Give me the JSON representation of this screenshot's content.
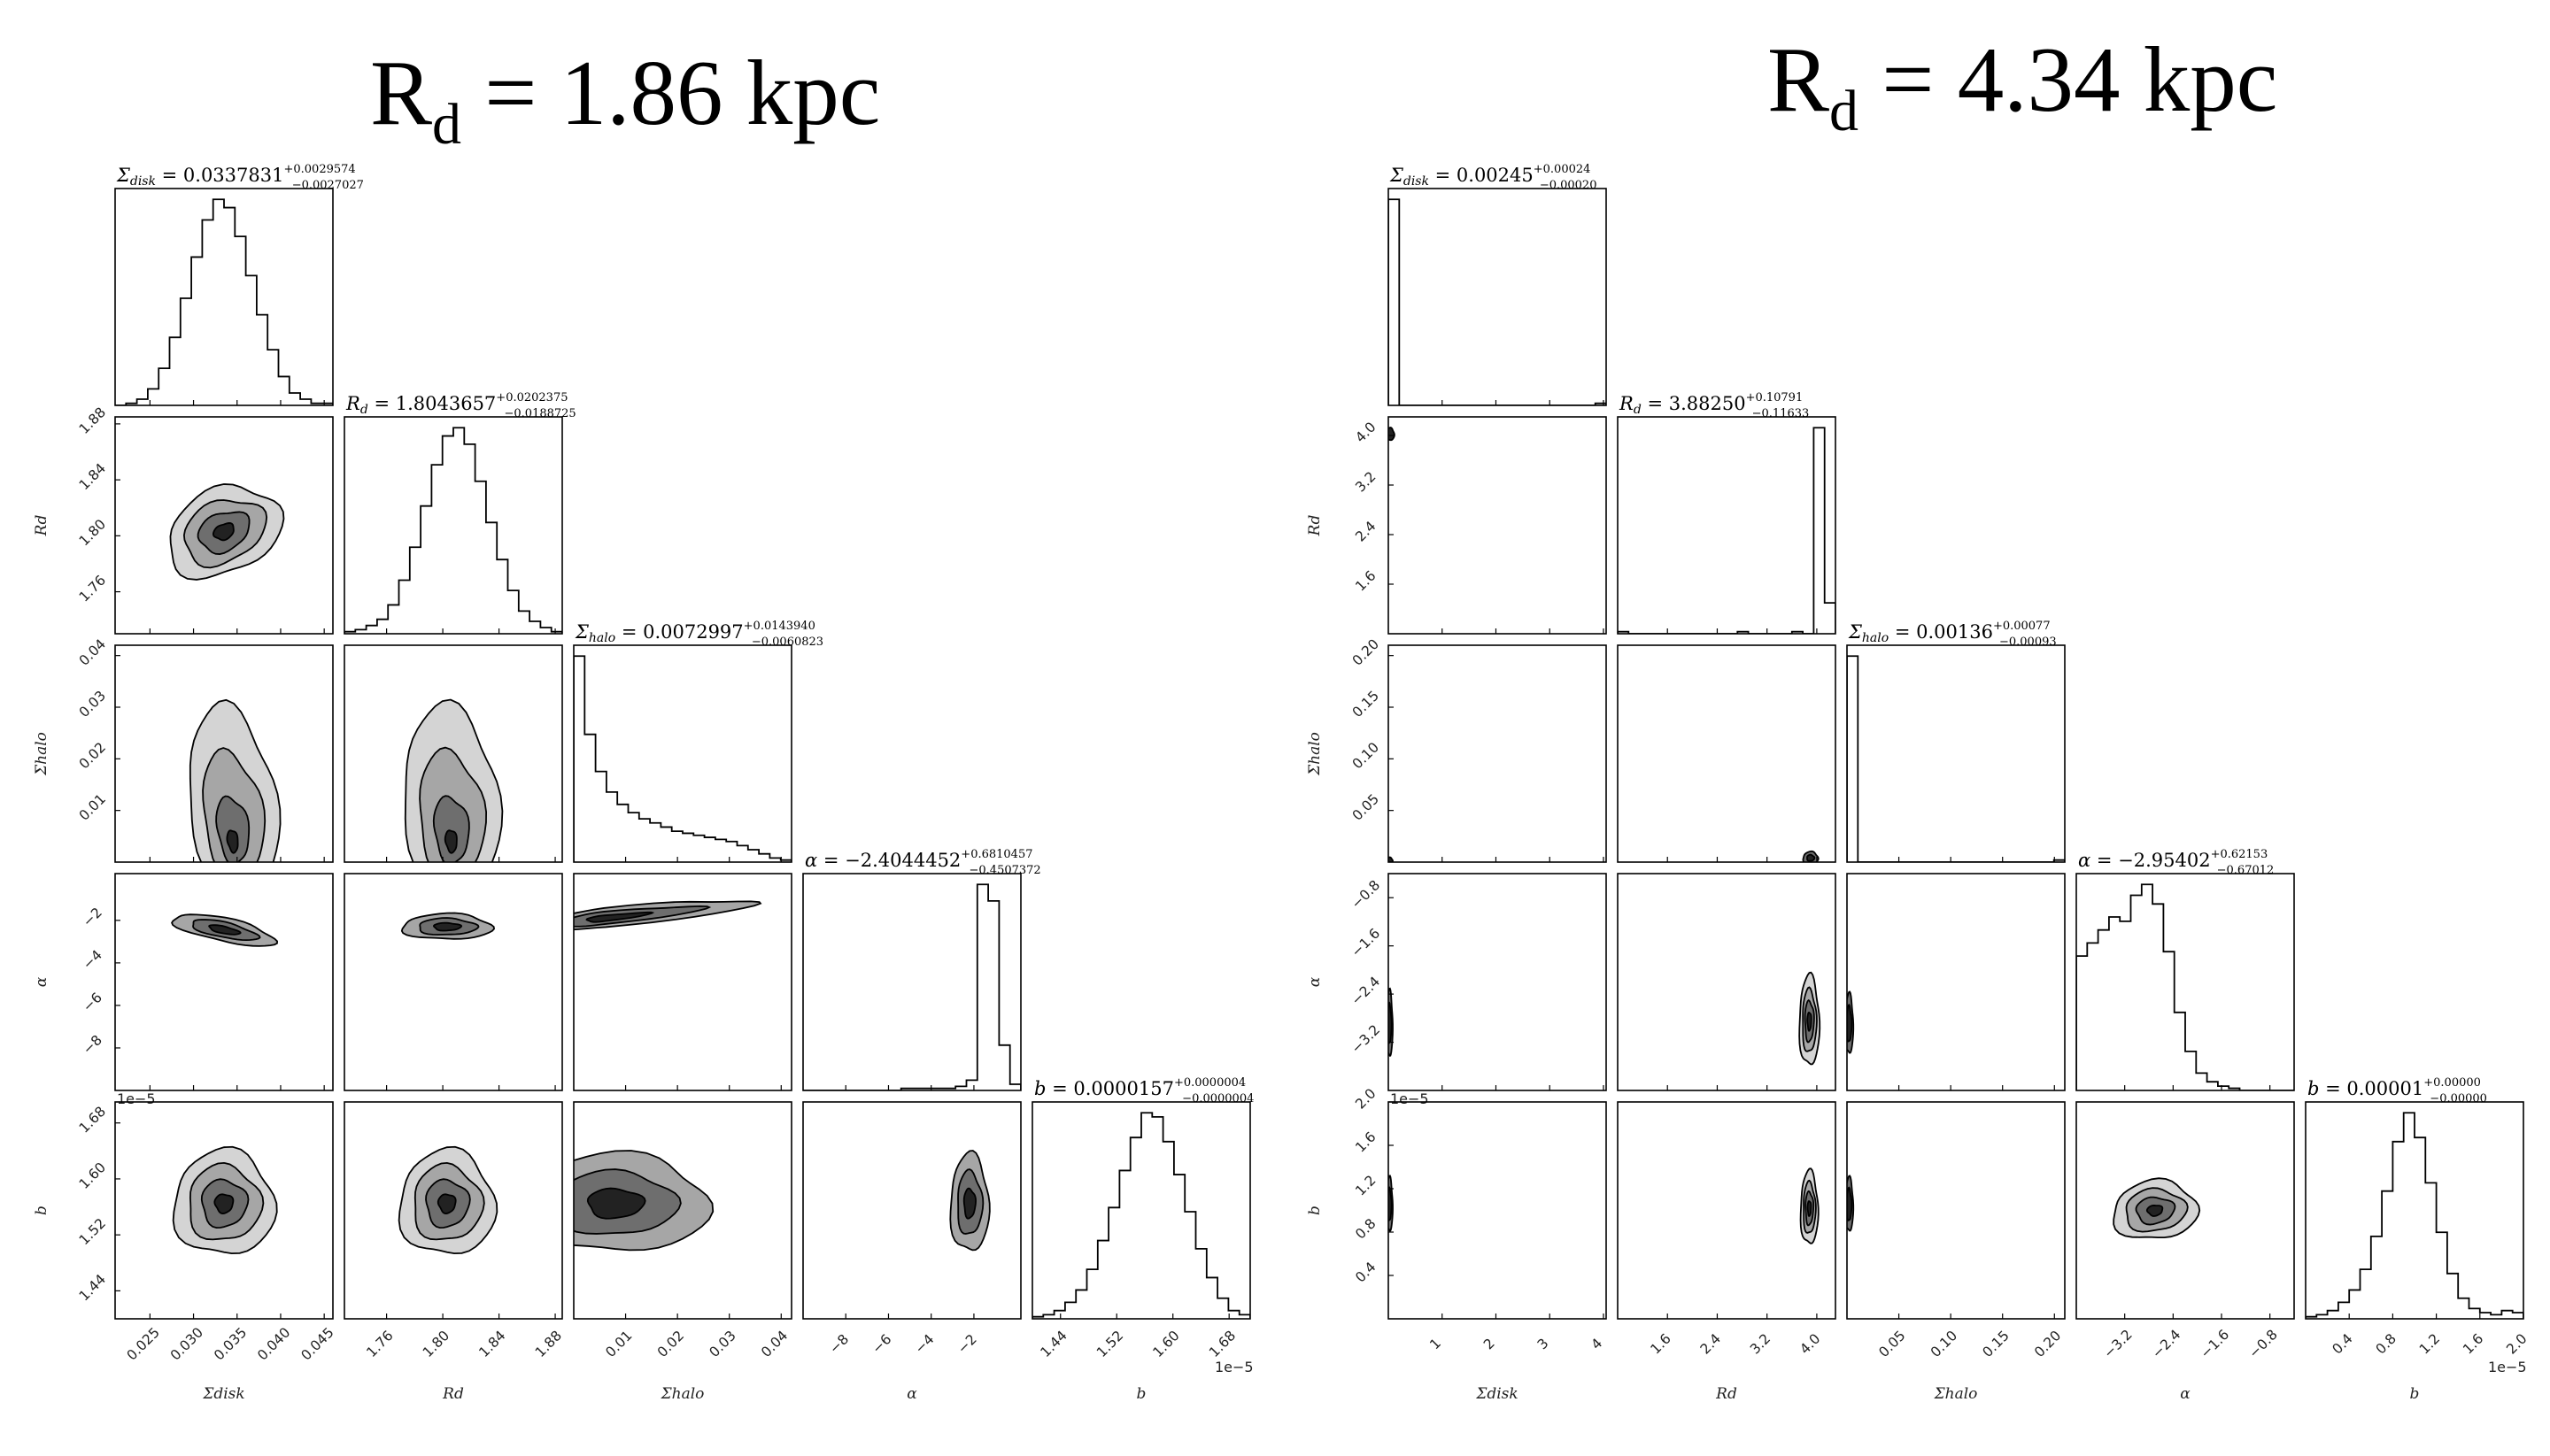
{
  "figures": [
    {
      "title_main": "R",
      "title_sub": "d",
      "title_rest": " = 1.86 kpc"
    },
    {
      "title_main": "R",
      "title_sub": "d",
      "title_rest": " = 4.34 kpc"
    }
  ],
  "chart_data": [
    {
      "type": "corner",
      "parameters": [
        "Σ_disk",
        "R_d",
        "Σ_halo",
        "α",
        "b"
      ],
      "axis_labels": [
        "Σdisk",
        "Rd",
        "Σhalo",
        "α",
        "b"
      ],
      "panel_titles": [
        {
          "name": "Σ",
          "sub": "disk",
          "value": " = 0.0337831",
          "plus": "+0.0029574",
          "minus": "−0.0027027"
        },
        {
          "name": "R",
          "sub": "d",
          "value": " = 1.8043657",
          "plus": "+0.0202375",
          "minus": "−0.0188725"
        },
        {
          "name": "Σ",
          "sub": "halo",
          "value": " = 0.0072997",
          "plus": "+0.0143940",
          "minus": "−0.0060823"
        },
        {
          "name": "α",
          "sub": "",
          "value": " = −2.4044452",
          "plus": "+0.6810457",
          "minus": "−0.4507372"
        },
        {
          "name": "b",
          "sub": "",
          "value": " = 0.0000157",
          "plus": "+0.0000004",
          "minus": "−0.0000004"
        }
      ],
      "estimates": [
        0.0337831,
        1.8043657,
        0.0072997,
        -2.4044452,
        1.57
      ],
      "ranges": [
        [
          0.021,
          0.046
        ],
        [
          1.73,
          1.885
        ],
        [
          0,
          0.042
        ],
        [
          -10,
          0.2
        ],
        [
          1.4,
          1.71
        ]
      ],
      "ticks": [
        {
          "values": [
            0.025,
            0.03,
            0.035,
            0.04,
            0.045
          ],
          "labels": [
            "0.025",
            "0.030",
            "0.035",
            "0.040",
            "0.045"
          ]
        },
        {
          "values": [
            1.76,
            1.8,
            1.84,
            1.88
          ],
          "labels": [
            "1.76",
            "1.80",
            "1.84",
            "1.88"
          ]
        },
        {
          "values": [
            0.01,
            0.02,
            0.03,
            0.04
          ],
          "labels": [
            "0.01",
            "0.02",
            "0.03",
            "0.04"
          ]
        },
        {
          "values": [
            -8,
            -6,
            -4,
            -2
          ],
          "labels": [
            "−8",
            "−6",
            "−4",
            "−2"
          ]
        },
        {
          "values": [
            1.44,
            1.52,
            1.6,
            1.68
          ],
          "labels": [
            "1.44",
            "1.52",
            "1.60",
            "1.68"
          ]
        }
      ],
      "offset_text_x": "1e−5",
      "offset_text_y": "1e−5",
      "histograms": [
        [
          0,
          1,
          3,
          8,
          18,
          33,
          52,
          72,
          90,
          100,
          96,
          82,
          63,
          44,
          27,
          14,
          6,
          3,
          1,
          1
        ],
        [
          1,
          2,
          4,
          7,
          14,
          26,
          42,
          62,
          82,
          96,
          100,
          92,
          74,
          54,
          36,
          21,
          11,
          6,
          3,
          1
        ],
        [
          100,
          62,
          44,
          34,
          28,
          24,
          21,
          19,
          17,
          15,
          14,
          13,
          12,
          11,
          10,
          8,
          6,
          4,
          2,
          1
        ],
        [
          0,
          0,
          0,
          0,
          0,
          0,
          0,
          0,
          0,
          1,
          1,
          1,
          1,
          1,
          2,
          5,
          100,
          92,
          22,
          3
        ],
        [
          1,
          2,
          4,
          8,
          14,
          24,
          38,
          54,
          72,
          88,
          100,
          98,
          86,
          70,
          52,
          34,
          20,
          10,
          4,
          2
        ]
      ]
    },
    {
      "type": "corner",
      "parameters": [
        "Σ_disk",
        "R_d",
        "Σ_halo",
        "α",
        "b"
      ],
      "axis_labels": [
        "Σdisk",
        "Rd",
        "Σhalo",
        "α",
        "b"
      ],
      "panel_titles": [
        {
          "name": "Σ",
          "sub": "disk",
          "value": " = 0.00245",
          "plus": "+0.00024",
          "minus": "−0.00020"
        },
        {
          "name": "R",
          "sub": "d",
          "value": " = 3.88250",
          "plus": "+0.10791",
          "minus": "−0.11633"
        },
        {
          "name": "Σ",
          "sub": "halo",
          "value": " = 0.00136",
          "plus": "+0.00077",
          "minus": "−0.00093"
        },
        {
          "name": "α",
          "sub": "",
          "value": " = −2.95402",
          "plus": "+0.62153",
          "minus": "−0.67012"
        },
        {
          "name": "b",
          "sub": "",
          "value": " = 0.00001",
          "plus": "+0.00000",
          "minus": "−0.00000"
        }
      ],
      "estimates": [
        0.00245,
        3.8825,
        0.00136,
        -2.95402,
        1.0
      ],
      "ranges": [
        [
          0,
          4.05
        ],
        [
          0.8,
          4.3
        ],
        [
          0,
          0.21
        ],
        [
          -4.0,
          -0.4
        ],
        [
          0,
          2.0
        ]
      ],
      "ticks": [
        {
          "values": [
            1,
            2,
            3,
            4
          ],
          "labels": [
            "1",
            "2",
            "3",
            "4"
          ]
        },
        {
          "values": [
            1.6,
            2.4,
            3.2,
            4.0
          ],
          "labels": [
            "1.6",
            "2.4",
            "3.2",
            "4.0"
          ]
        },
        {
          "values": [
            0.05,
            0.1,
            0.15,
            0.2
          ],
          "labels": [
            "0.05",
            "0.10",
            "0.15",
            "0.20"
          ]
        },
        {
          "values": [
            -3.2,
            -2.4,
            -1.6,
            -0.8
          ],
          "labels": [
            "−3.2",
            "−2.4",
            "−1.6",
            "−0.8"
          ]
        },
        {
          "values": [
            0.4,
            0.8,
            1.2,
            1.6,
            2.0
          ],
          "labels": [
            "0.4",
            "0.8",
            "1.2",
            "1.6",
            "2.0"
          ]
        }
      ],
      "offset_text_x": "1e−5",
      "offset_text_y": "1e−5",
      "histograms": [
        [
          100,
          0,
          0,
          0,
          0,
          0,
          0,
          0,
          0,
          0,
          0,
          0,
          0,
          0,
          0,
          0,
          0,
          0,
          0,
          1
        ],
        [
          1,
          0,
          0,
          0,
          0,
          0,
          0,
          0,
          0,
          0,
          0,
          1,
          0,
          0,
          0,
          0,
          1,
          0,
          100,
          15
        ],
        [
          100,
          0,
          0,
          0,
          0,
          0,
          0,
          0,
          0,
          0,
          0,
          0,
          0,
          0,
          0,
          0,
          0,
          0,
          0,
          1
        ],
        [
          62,
          68,
          74,
          80,
          78,
          90,
          95,
          86,
          64,
          36,
          18,
          8,
          4,
          2,
          1,
          0,
          0,
          0,
          0,
          0
        ],
        [
          1,
          2,
          4,
          8,
          14,
          24,
          40,
          62,
          86,
          100,
          88,
          66,
          42,
          22,
          10,
          5,
          3,
          2,
          4,
          3
        ]
      ]
    }
  ]
}
